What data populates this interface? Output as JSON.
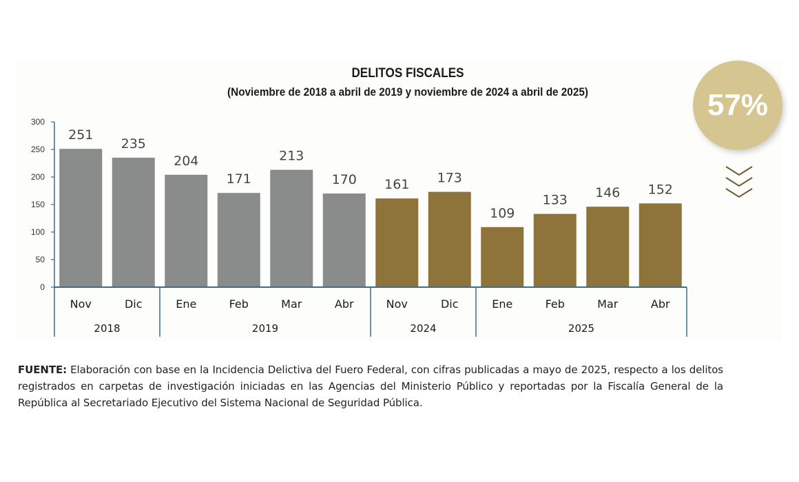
{
  "chart_data": {
    "type": "bar",
    "title": "DELITOS FISCALES",
    "subtitle": "(Noviembre de 2018 a abril de 2019 y noviembre de 2024 a abril de 2025)",
    "categories": [
      "Nov",
      "Dic",
      "Ene",
      "Feb",
      "Mar",
      "Abr",
      "Nov",
      "Dic",
      "Ene",
      "Feb",
      "Mar",
      "Abr"
    ],
    "values": [
      251,
      235,
      204,
      171,
      213,
      170,
      161,
      173,
      109,
      133,
      146,
      152
    ],
    "groups": [
      {
        "label": "2018",
        "count": 2
      },
      {
        "label": "2019",
        "count": 4
      },
      {
        "label": "2024",
        "count": 2
      },
      {
        "label": "2025",
        "count": 4
      }
    ],
    "ylim": [
      0,
      300
    ],
    "yticks": [
      0,
      50,
      100,
      150,
      200,
      250,
      300
    ],
    "series_colors": [
      "#8a8b8b",
      "#8a8b8b",
      "#8a8b8b",
      "#8a8b8b",
      "#8a8b8b",
      "#8a8b8b",
      "#8e733a",
      "#8e733a",
      "#8e733a",
      "#8e733a",
      "#8e733a",
      "#8e733a"
    ],
    "xlabel": "",
    "ylabel": ""
  },
  "badge": {
    "text": "57%",
    "color": "#d4c591"
  },
  "footnote": {
    "label": "FUENTE:",
    "text": " Elaboración con base en la Incidencia Delictiva del Fuero Federal, con cifras publicadas a mayo de 2025, respecto a los delitos registrados en carpetas de investigación iniciadas en las Agencias del Ministerio Público y reportadas por la Fiscalía General de la República al Secretariado Ejecutivo del Sistema Nacional de Seguridad Pública."
  }
}
